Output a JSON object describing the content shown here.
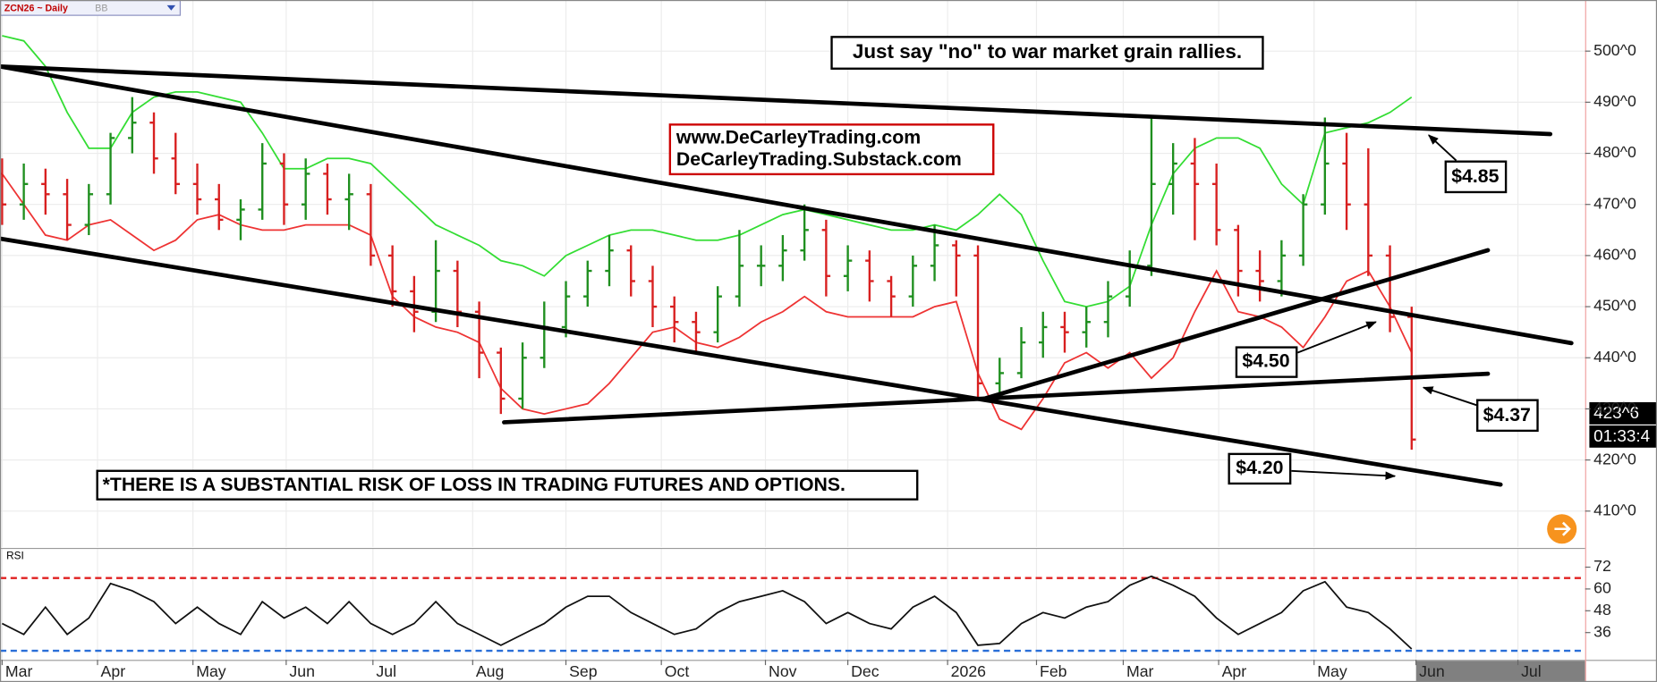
{
  "chart_data": {
    "type": "ohlc",
    "title": "ZCN26 ~ Daily",
    "study": "BB",
    "up_color": "#1f8f1f",
    "down_color": "#d82020",
    "grid": true,
    "xlim": [
      0,
      73
    ],
    "xticks": [
      {
        "value": 0,
        "label": "Mar"
      },
      {
        "value": 4.4,
        "label": "Apr"
      },
      {
        "value": 8.8,
        "label": "May"
      },
      {
        "value": 13.1,
        "label": "Jun"
      },
      {
        "value": 17.1,
        "label": "Jul"
      },
      {
        "value": 21.7,
        "label": "Aug"
      },
      {
        "value": 26,
        "label": "Sep"
      },
      {
        "value": 30.4,
        "label": "Oct"
      },
      {
        "value": 35.2,
        "label": "Nov"
      },
      {
        "value": 39,
        "label": "Dec"
      },
      {
        "value": 43.6,
        "label": "2026"
      },
      {
        "value": 47.7,
        "label": "Feb"
      },
      {
        "value": 51.7,
        "label": "Mar"
      },
      {
        "value": 56.1,
        "label": "Apr"
      },
      {
        "value": 60.5,
        "label": "May"
      },
      {
        "value": 65.2,
        "label": "Jun"
      },
      {
        "value": 69.9,
        "label": "Jul"
      }
    ],
    "ylim": [
      403,
      510
    ],
    "yticks": [
      {
        "value": 410,
        "label": "410^0"
      },
      {
        "value": 420,
        "label": "420^0"
      },
      {
        "value": 430,
        "label": "430^0"
      },
      {
        "value": 440,
        "label": "440^0"
      },
      {
        "value": 450,
        "label": "450^0"
      },
      {
        "value": 460,
        "label": "460^0"
      },
      {
        "value": 470,
        "label": "470^0"
      },
      {
        "value": 480,
        "label": "480^0"
      },
      {
        "value": 490,
        "label": "490^0"
      },
      {
        "value": 500,
        "label": "500^0"
      }
    ],
    "open": [
      476,
      470,
      474,
      472,
      466,
      472,
      483,
      486,
      479,
      474,
      471,
      467,
      469,
      478,
      470,
      476,
      471,
      472,
      460,
      453,
      449,
      457,
      449,
      441,
      432,
      440,
      446,
      452,
      457,
      461,
      455,
      450,
      447,
      445,
      452,
      458,
      458,
      461,
      465,
      456,
      459,
      455,
      452,
      458,
      462,
      460,
      435,
      437,
      443,
      446,
      445,
      447,
      452,
      458,
      474,
      478,
      474,
      465,
      457,
      455,
      460,
      470,
      478,
      470,
      460,
      448
    ],
    "high": [
      479,
      478,
      477,
      475,
      474,
      484,
      491,
      488,
      484,
      478,
      474,
      471,
      482,
      480,
      479,
      478,
      476,
      474,
      462,
      456,
      463,
      459,
      451,
      442,
      443,
      451,
      455,
      459,
      464,
      462,
      458,
      452,
      449,
      454,
      465,
      462,
      464,
      470,
      467,
      462,
      461,
      456,
      460,
      466,
      463,
      462,
      440,
      446,
      449,
      449,
      450,
      455,
      461,
      487,
      482,
      483,
      478,
      466,
      461,
      463,
      472,
      487,
      484,
      481,
      462,
      450
    ],
    "low": [
      466,
      467,
      468,
      463,
      464,
      470,
      480,
      476,
      472,
      468,
      465,
      463,
      467,
      466,
      467,
      468,
      465,
      458,
      450,
      445,
      447,
      446,
      436,
      429,
      430,
      438,
      444,
      450,
      454,
      452,
      446,
      443,
      441,
      443,
      450,
      454,
      455,
      459,
      452,
      453,
      451,
      448,
      450,
      455,
      452,
      432,
      432,
      436,
      440,
      441,
      442,
      444,
      450,
      456,
      468,
      463,
      462,
      452,
      451,
      452,
      458,
      468,
      465,
      456,
      445,
      422
    ],
    "close": [
      470,
      474,
      472,
      466,
      472,
      483,
      486,
      479,
      474,
      471,
      467,
      469,
      478,
      470,
      476,
      471,
      472,
      460,
      453,
      449,
      457,
      449,
      441,
      432,
      440,
      446,
      452,
      457,
      461,
      455,
      450,
      447,
      445,
      452,
      458,
      458,
      461,
      465,
      456,
      459,
      455,
      452,
      458,
      462,
      460,
      435,
      437,
      443,
      446,
      445,
      447,
      452,
      458,
      474,
      478,
      474,
      465,
      457,
      455,
      460,
      470,
      478,
      470,
      460,
      448,
      424
    ],
    "bands": [
      {
        "color": "#33dd33",
        "values": [
          503,
          502,
          497,
          488,
          481,
          481,
          488,
          491,
          492,
          492,
          491,
          490,
          484,
          477,
          477,
          479,
          479,
          478,
          474,
          470,
          466,
          464,
          462,
          459,
          458,
          456,
          460,
          462,
          464,
          465,
          465,
          464,
          463,
          463,
          464,
          466,
          468,
          469,
          468,
          467,
          466,
          465,
          465,
          466,
          465,
          468,
          472,
          468,
          459,
          451,
          450,
          451,
          454,
          466,
          476,
          481,
          483,
          483,
          481,
          474,
          470,
          484,
          485,
          486,
          488,
          491
        ]
      },
      {
        "color": "#ee3333",
        "values": [
          476,
          470,
          464,
          463,
          466,
          467,
          464,
          461,
          463,
          467,
          468,
          466,
          465,
          465,
          466,
          466,
          466,
          464,
          452,
          448,
          446,
          445,
          443,
          434,
          430,
          429,
          430,
          431,
          435,
          440,
          445,
          446,
          443,
          442,
          444,
          447,
          449,
          452,
          449,
          448,
          448,
          448,
          448,
          450,
          451,
          437,
          428,
          426,
          432,
          439,
          441,
          438,
          441,
          436,
          440,
          449,
          457,
          449,
          448,
          446,
          442,
          448,
          455,
          457,
          450,
          441
        ]
      }
    ],
    "last_price_label": "423^6",
    "countdown": "01:33:4",
    "rsi": {
      "name": "RSI",
      "color": "#111111",
      "ylim": [
        21,
        82
      ],
      "yticks": [
        72,
        60,
        48,
        36
      ],
      "levels": [
        {
          "value": 66,
          "color": "#e02020"
        },
        {
          "value": 26,
          "color": "#2a6fd8"
        }
      ],
      "values": [
        41,
        35,
        50,
        35,
        44,
        63,
        59,
        53,
        41,
        50,
        41,
        35,
        53,
        44,
        50,
        41,
        53,
        41,
        35,
        41,
        53,
        41,
        35,
        29,
        35,
        41,
        50,
        56,
        56,
        47,
        41,
        35,
        38,
        47,
        53,
        56,
        59,
        53,
        41,
        47,
        41,
        38,
        50,
        56,
        47,
        29,
        30,
        41,
        47,
        44,
        50,
        53,
        62,
        67,
        62,
        56,
        44,
        35,
        41,
        47,
        59,
        64,
        50,
        47,
        38,
        27
      ]
    },
    "annotations": {
      "headline": "Just say \"no\" to war market grain rallies.",
      "website": "www.DeCarleyTrading.com",
      "substack": "DeCarleyTrading.Substack.com",
      "disclaimer": "*THERE IS A SUBSTANTIAL RISK OF LOSS IN TRADING FUTURES AND OPTIONS.",
      "price_notes": [
        "$4.85",
        "$4.50",
        "$4.37",
        "$4.20"
      ]
    }
  }
}
